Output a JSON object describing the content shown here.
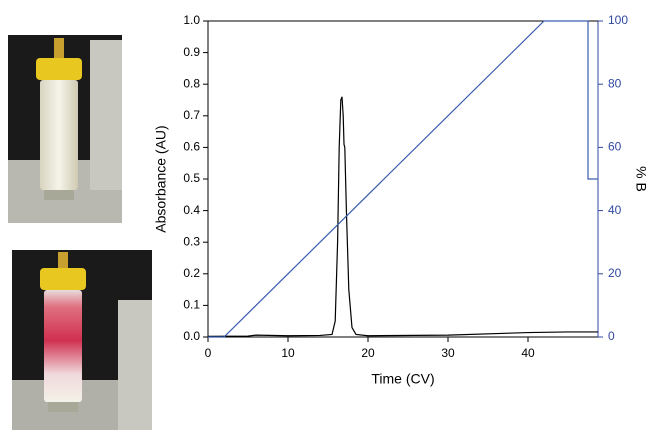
{
  "chart_data": {
    "type": "line",
    "xlabel": "Time (CV)",
    "ylabel": "Absorbance (AU)",
    "y2label": "% B",
    "xlim": [
      0,
      48.75
    ],
    "xticks": [
      0,
      10,
      20,
      30,
      40
    ],
    "ylim": [
      0,
      1
    ],
    "yticks": [
      {
        "value": 0,
        "label": "0.0"
      },
      0.1,
      0.2,
      0.3,
      0.4,
      0.5,
      0.6,
      0.7,
      0.8,
      0.9,
      {
        "value": 1,
        "label": "1.0"
      }
    ],
    "y2lim": [
      0,
      100
    ],
    "y2ticks": [
      0,
      20,
      40,
      60,
      80,
      100
    ],
    "y2color": "#3048a0",
    "series": [
      {
        "color": "#000000",
        "x": [
          0,
          5,
          6,
          10,
          14,
          15.5,
          15.9,
          16.2,
          16.4,
          16.6,
          16.75,
          16.9,
          17.0,
          17.1,
          17.3,
          17.6,
          18,
          18.5,
          20,
          30,
          40,
          45,
          48.75
        ],
        "values": [
          0.002,
          0.003,
          0.006,
          0.004,
          0.005,
          0.008,
          0.05,
          0.3,
          0.6,
          0.75,
          0.76,
          0.7,
          0.61,
          0.6,
          0.4,
          0.15,
          0.03,
          0.008,
          0.004,
          0.006,
          0.014,
          0.016,
          0.016
        ]
      },
      {
        "color": "#3a5cb0",
        "axis": "y2",
        "x": [
          0,
          2,
          42,
          47.5,
          47.5,
          48.75
        ],
        "values": [
          0,
          0,
          100,
          100,
          50,
          50
        ]
      }
    ]
  }
}
